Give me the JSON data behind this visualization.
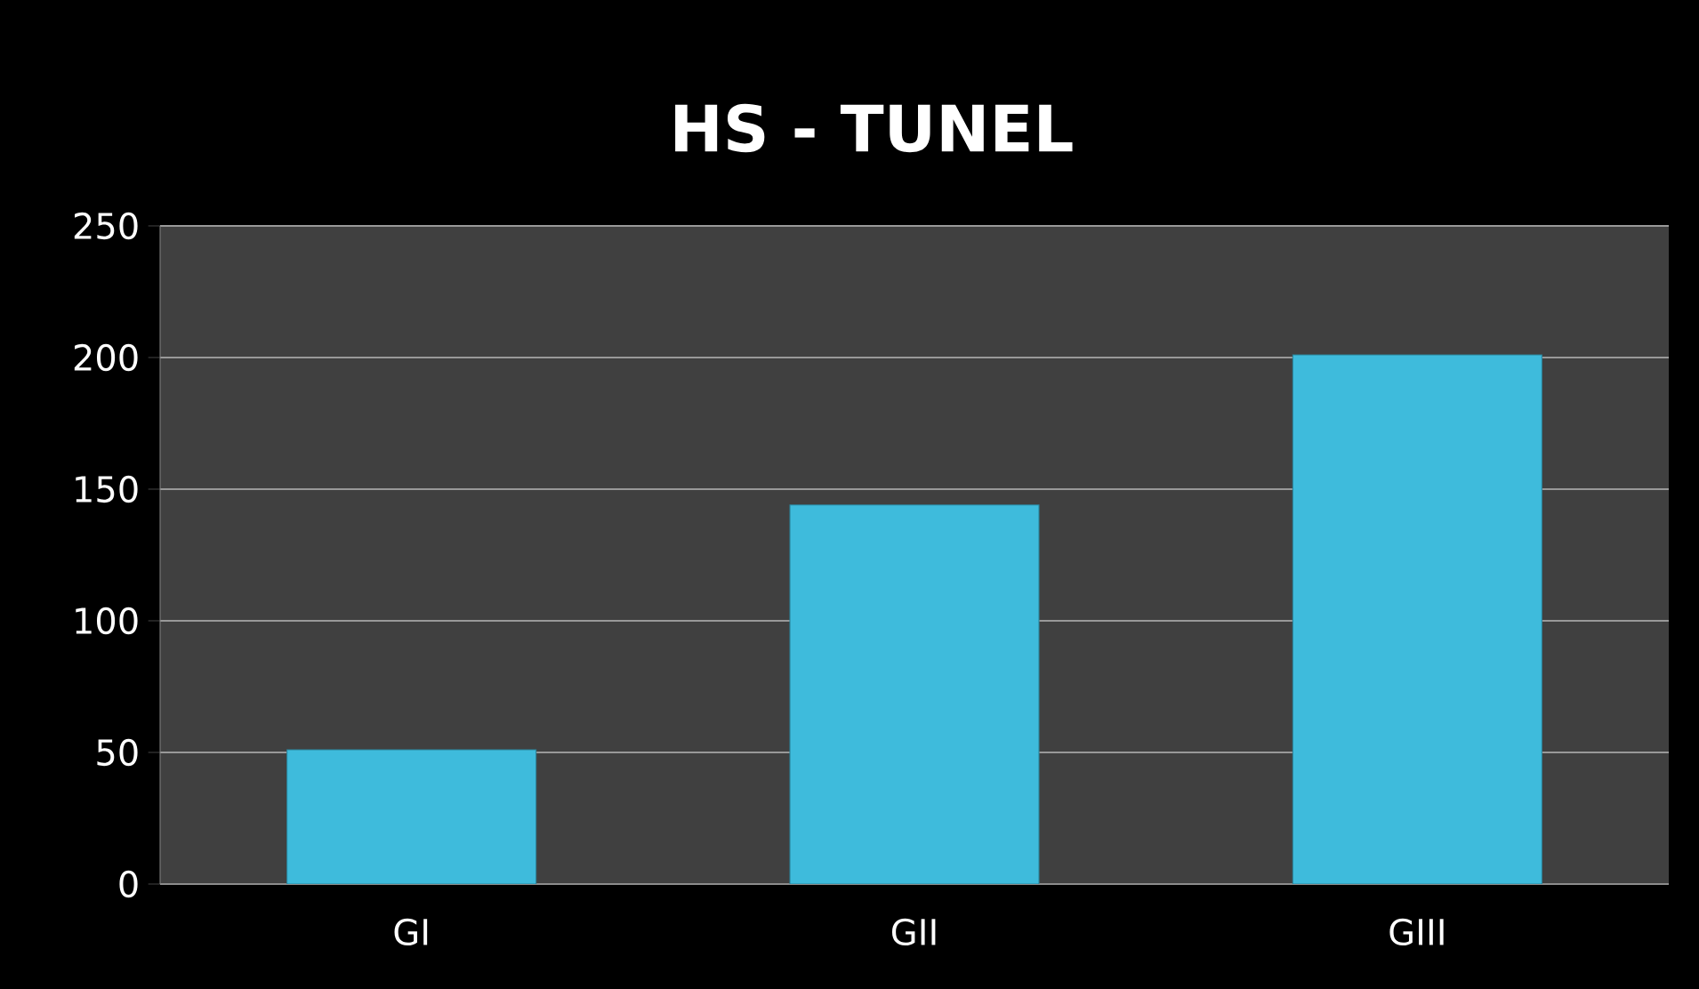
{
  "chart_data": {
    "type": "bar",
    "title": "HS - TUNEL",
    "categories": [
      "GI",
      "GII",
      "GIII"
    ],
    "values": [
      51,
      144,
      201
    ],
    "color": "#3ebbdc",
    "ylim": [
      0,
      250
    ],
    "yticks": [
      0,
      50,
      100,
      150,
      200,
      250
    ],
    "grid": "y"
  }
}
